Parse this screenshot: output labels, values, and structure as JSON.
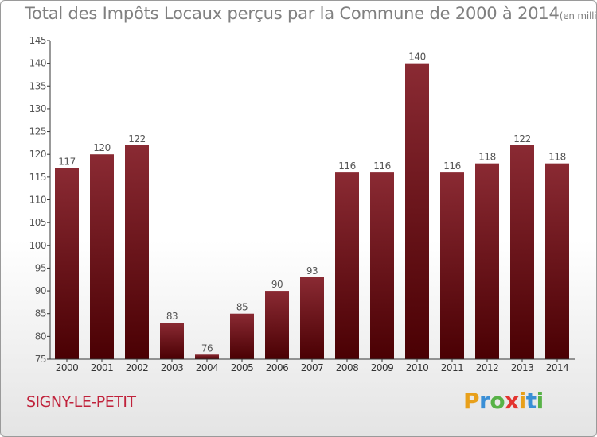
{
  "header": {
    "title": "Total des Impôts Locaux perçus par la Commune de 2000 à 2014",
    "unit_note": "(en milliers d'€)"
  },
  "commune": "SIGNY-LE-PETIT",
  "brand": {
    "name": "Proxiti",
    "letters": [
      "P",
      "r",
      "o",
      "x",
      "i",
      "t",
      "i"
    ],
    "letter_colors": [
      "#e8a01b",
      "#3a8fd6",
      "#58b247",
      "#e3342f",
      "#e8a01b",
      "#3a8fd6",
      "#58b247"
    ]
  },
  "colors": {
    "bar_top": "#8a2a33",
    "bar_bottom": "#4a0003",
    "text": "#555555",
    "axis": "#333333"
  },
  "chart_data": {
    "type": "bar",
    "title": "Total des Impôts Locaux perçus par la Commune de 2000 à 2014",
    "xlabel": "",
    "ylabel": "",
    "ylim": [
      75,
      145
    ],
    "yticks": [
      75,
      80,
      85,
      90,
      95,
      100,
      105,
      110,
      115,
      120,
      125,
      130,
      135,
      140,
      145
    ],
    "categories": [
      "2000",
      "2001",
      "2002",
      "2003",
      "2004",
      "2005",
      "2006",
      "2007",
      "2008",
      "2009",
      "2010",
      "2011",
      "2012",
      "2013",
      "2014"
    ],
    "values": [
      117,
      120,
      122,
      83,
      76,
      85,
      90,
      93,
      116,
      116,
      140,
      116,
      118,
      122,
      118
    ],
    "data_labels": [
      "117",
      "120",
      "122",
      "83",
      "76",
      "85",
      "90",
      "93",
      "116",
      "116",
      "140",
      "116",
      "118",
      "122",
      "118"
    ],
    "grid": false,
    "legend": "none"
  }
}
